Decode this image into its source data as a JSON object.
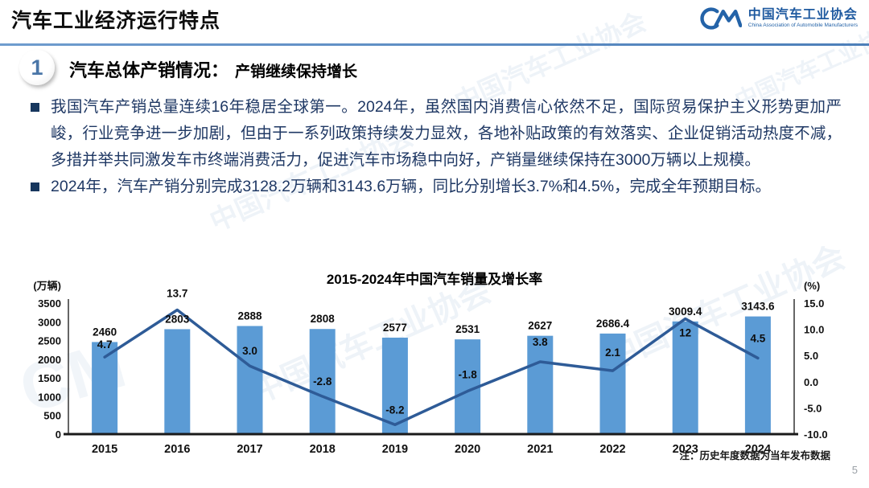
{
  "header": {
    "title": "汽车工业经济运行特点",
    "logo": {
      "monogram": "CM",
      "org_cn": "中国汽车工业协会",
      "org_en": "China Association of Automobile Manufacturers"
    }
  },
  "section": {
    "number": "1",
    "title": "汽车总体产销情况：",
    "subtitle": "产销继续保持增长"
  },
  "bullets": [
    "我国汽车产销总量连续16年稳居全球第一。2024年，虽然国内消费信心依然不足，国际贸易保护主义形势更加严峻，行业竞争进一步加剧，但由于一系列政策持续发力显效，各地补贴政策的有效落实、企业促销活动热度不减，多措并举共同激发车市终端消费活力，促进汽车市场稳中向好，产销量继续保持在3000万辆以上规模。",
    "2024年，汽车产销分别完成3128.2万辆和3143.6万辆，同比分别增长3.7%和4.5%，完成全年预期目标。"
  ],
  "chart_data": {
    "type": "bar",
    "subtype": "bar+line combo, dual axis",
    "title": "2015-2024年中国汽车销量及增长率",
    "categories": [
      "2015",
      "2016",
      "2017",
      "2018",
      "2019",
      "2020",
      "2021",
      "2022",
      "2023",
      "2024"
    ],
    "series": [
      {
        "name": "销量(万辆)",
        "type": "bar",
        "axis": "left",
        "color": "#5B9BD5",
        "values": [
          2460,
          2803,
          2888,
          2808,
          2577,
          2531,
          2627,
          2686.4,
          3009.4,
          3143.6
        ],
        "labels": [
          "2460",
          "2803",
          "2888",
          "2808",
          "2577",
          "2531",
          "2627",
          "2686.4",
          "3009.4",
          "3143.6"
        ]
      },
      {
        "name": "增长率(%)",
        "type": "line",
        "axis": "right",
        "color": "#2E5B97",
        "values": [
          4.7,
          13.7,
          3.0,
          -2.8,
          -8.2,
          -1.8,
          3.8,
          2.1,
          12,
          4.5
        ],
        "labels": [
          "4.7",
          "13.7",
          "3.0",
          "-2.8",
          "-8.2",
          "-1.8",
          "3.8",
          "2.1",
          "12",
          "4.5"
        ],
        "label_dy": [
          -11,
          -16,
          -14,
          -14,
          -14,
          -16,
          -20,
          -18,
          22,
          -20
        ]
      }
    ],
    "left_axis": {
      "label": "(万辆)",
      "min": 0,
      "max": 3500,
      "step": 500,
      "ticks": [
        "0",
        "500",
        "1000",
        "1500",
        "2000",
        "2500",
        "3000",
        "3500"
      ]
    },
    "right_axis": {
      "label": "(%)",
      "min": -10,
      "max": 15,
      "step": 5,
      "ticks": [
        "-10.0",
        "-5.0",
        "0.0",
        "5.0",
        "10.0",
        "15.0"
      ]
    },
    "grid": false,
    "legend": "none"
  },
  "footnote": "注：历史年度数据为当年发布数据",
  "page_number": "5",
  "watermark": {
    "text": "中国汽车工业协会",
    "monogram": "CM"
  }
}
